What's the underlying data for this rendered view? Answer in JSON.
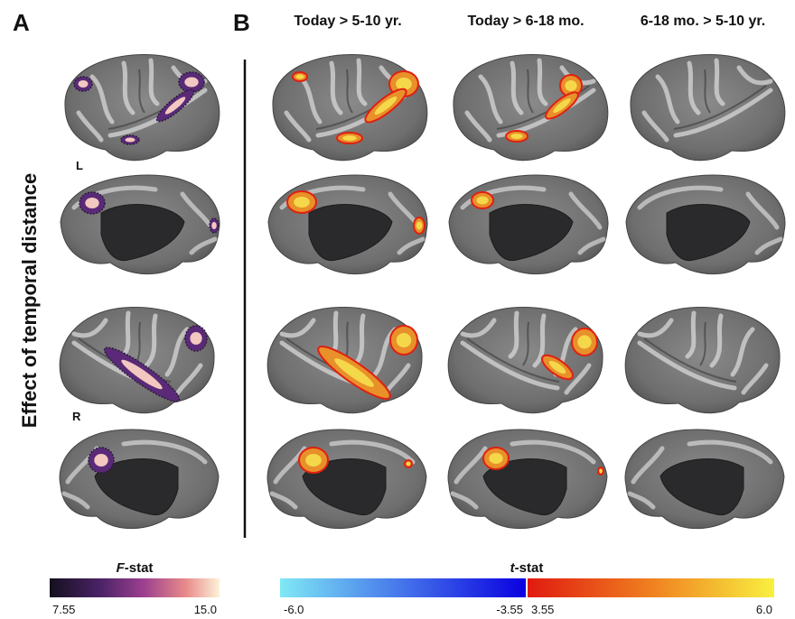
{
  "panel_labels": {
    "a": "A",
    "b": "B"
  },
  "column_headers": [
    "Today > 5-10 yr.",
    "Today > 6-18 mo.",
    "6-18 mo. > 5-10 yr."
  ],
  "row_label": "Effect of temporal distance",
  "hemisphere_labels": {
    "left": "L",
    "right": "R"
  },
  "f_colorbar": {
    "label_parts": [
      "F",
      "-stat"
    ],
    "min": "7.55",
    "max": "15.0"
  },
  "t_colorbar": {
    "label_parts": [
      "t",
      "-stat"
    ],
    "ticks": [
      "-6.0",
      "-3.55",
      "3.55",
      "6.0"
    ]
  }
}
